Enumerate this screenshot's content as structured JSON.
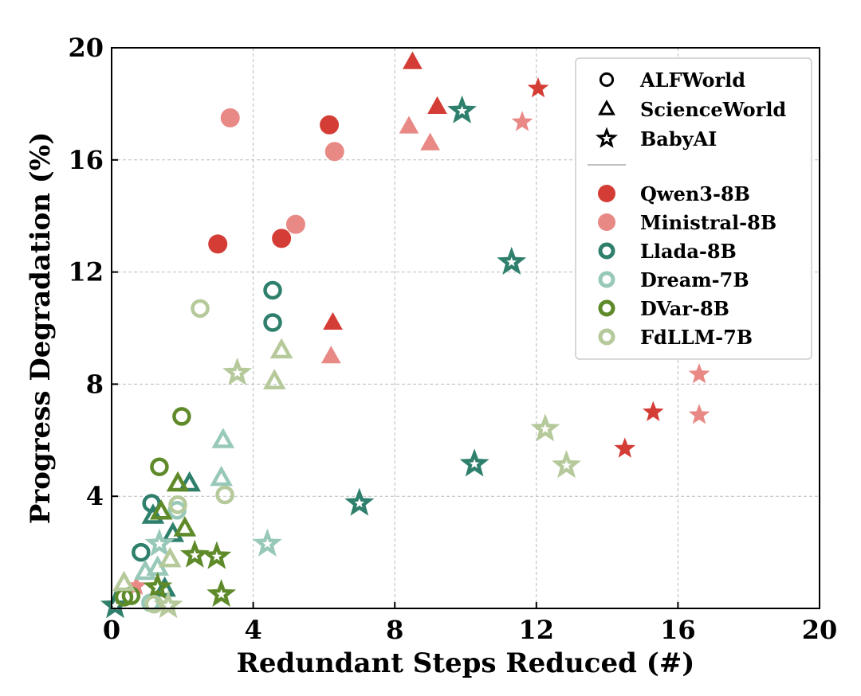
{
  "chart_data": {
    "type": "scatter",
    "xlabel": "Redundant Steps Reduced (#)",
    "ylabel": "Progress Degradation (%)",
    "xlim": [
      0,
      20
    ],
    "ylim": [
      0,
      20
    ],
    "xticks": [
      "0",
      "4",
      "8",
      "12",
      "16",
      "20"
    ],
    "yticks": [
      "4",
      "8",
      "12",
      "16",
      "20"
    ],
    "grid": true,
    "legend_placement": "top-right",
    "marker_legend": [
      {
        "name": "ALFWorld",
        "marker": "circle"
      },
      {
        "name": "ScienceWorld",
        "marker": "triangle"
      },
      {
        "name": "BabyAI",
        "marker": "star"
      }
    ],
    "series": [
      {
        "name": "Qwen3-8B",
        "color": "#d43d36",
        "filled": true,
        "points": [
          {
            "task": "ALFWorld",
            "x": 3.0,
            "y": 13.0
          },
          {
            "task": "ALFWorld",
            "x": 4.8,
            "y": 13.2
          },
          {
            "task": "ALFWorld",
            "x": 6.15,
            "y": 17.25
          },
          {
            "task": "ScienceWorld",
            "x": 8.5,
            "y": 19.5
          },
          {
            "task": "ScienceWorld",
            "x": 9.2,
            "y": 17.9
          },
          {
            "task": "ScienceWorld",
            "x": 6.25,
            "y": 10.2
          },
          {
            "task": "BabyAI",
            "x": 12.05,
            "y": 18.55
          },
          {
            "task": "BabyAI",
            "x": 15.3,
            "y": 7.0
          },
          {
            "task": "BabyAI",
            "x": 14.5,
            "y": 5.7
          }
        ]
      },
      {
        "name": "Ministral-8B",
        "color": "#e88985",
        "filled": true,
        "points": [
          {
            "task": "ALFWorld",
            "x": 3.35,
            "y": 17.5
          },
          {
            "task": "ALFWorld",
            "x": 6.3,
            "y": 16.3
          },
          {
            "task": "ALFWorld",
            "x": 5.2,
            "y": 13.7
          },
          {
            "task": "ScienceWorld",
            "x": 8.4,
            "y": 17.2
          },
          {
            "task": "ScienceWorld",
            "x": 9.0,
            "y": 16.6
          },
          {
            "task": "ScienceWorld",
            "x": 6.2,
            "y": 9.0
          },
          {
            "task": "BabyAI",
            "x": 11.6,
            "y": 17.35
          },
          {
            "task": "BabyAI",
            "x": 16.6,
            "y": 8.35
          },
          {
            "task": "BabyAI",
            "x": 16.6,
            "y": 6.9
          },
          {
            "task": "BabyAI",
            "x": 0.7,
            "y": 0.8
          }
        ]
      },
      {
        "name": "Llada-8B",
        "color": "#2e7f6c",
        "filled": false,
        "points": [
          {
            "task": "ALFWorld",
            "x": 4.55,
            "y": 11.35
          },
          {
            "task": "ALFWorld",
            "x": 4.55,
            "y": 10.2
          },
          {
            "task": "ALFWorld",
            "x": 1.13,
            "y": 3.75
          },
          {
            "task": "ALFWorld",
            "x": 0.83,
            "y": 2.0
          },
          {
            "task": "ScienceWorld",
            "x": 2.2,
            "y": 4.45
          },
          {
            "task": "ScienceWorld",
            "x": 1.17,
            "y": 3.3
          },
          {
            "task": "ScienceWorld",
            "x": 1.73,
            "y": 2.65
          },
          {
            "task": "ScienceWorld",
            "x": 1.5,
            "y": 0.7
          },
          {
            "task": "BabyAI",
            "x": 9.9,
            "y": 17.75
          },
          {
            "task": "BabyAI",
            "x": 11.3,
            "y": 12.35
          },
          {
            "task": "BabyAI",
            "x": 10.25,
            "y": 5.15
          },
          {
            "task": "BabyAI",
            "x": 7.0,
            "y": 3.75
          },
          {
            "task": "BabyAI",
            "x": 0.1,
            "y": 0.1
          }
        ]
      },
      {
        "name": "Dream-7B",
        "color": "#97c8b8",
        "filled": false,
        "points": [
          {
            "task": "ALFWorld",
            "x": 1.85,
            "y": 3.5
          },
          {
            "task": "ALFWorld",
            "x": 1.1,
            "y": 0.2
          },
          {
            "task": "ScienceWorld",
            "x": 3.15,
            "y": 6.0
          },
          {
            "task": "ScienceWorld",
            "x": 3.1,
            "y": 4.65
          },
          {
            "task": "ScienceWorld",
            "x": 1.3,
            "y": 1.45
          },
          {
            "task": "ScienceWorld",
            "x": 0.95,
            "y": 1.3
          },
          {
            "task": "BabyAI",
            "x": 4.4,
            "y": 2.3
          },
          {
            "task": "BabyAI",
            "x": 1.35,
            "y": 2.3
          }
        ]
      },
      {
        "name": "DVar-8B",
        "color": "#5f8a2a",
        "filled": false,
        "points": [
          {
            "task": "ALFWorld",
            "x": 1.98,
            "y": 6.85
          },
          {
            "task": "ALFWorld",
            "x": 1.35,
            "y": 5.05
          },
          {
            "task": "ALFWorld",
            "x": 0.35,
            "y": 0.4
          },
          {
            "task": "ALFWorld",
            "x": 0.55,
            "y": 0.45
          },
          {
            "task": "ScienceWorld",
            "x": 1.87,
            "y": 4.45
          },
          {
            "task": "ScienceWorld",
            "x": 1.4,
            "y": 3.45
          },
          {
            "task": "ScienceWorld",
            "x": 2.07,
            "y": 2.85
          },
          {
            "task": "BabyAI",
            "x": 2.35,
            "y": 1.9
          },
          {
            "task": "BabyAI",
            "x": 2.97,
            "y": 1.85
          },
          {
            "task": "BabyAI",
            "x": 3.1,
            "y": 0.5
          },
          {
            "task": "BabyAI",
            "x": 1.3,
            "y": 0.75
          }
        ]
      },
      {
        "name": "FdLLM-7B",
        "color": "#b5c99a",
        "filled": false,
        "points": [
          {
            "task": "ALFWorld",
            "x": 2.5,
            "y": 10.7
          },
          {
            "task": "ALFWorld",
            "x": 3.2,
            "y": 4.05
          },
          {
            "task": "ALFWorld",
            "x": 1.87,
            "y": 3.7
          },
          {
            "task": "ALFWorld",
            "x": 1.2,
            "y": 0.15
          },
          {
            "task": "ScienceWorld",
            "x": 4.8,
            "y": 9.2
          },
          {
            "task": "ScienceWorld",
            "x": 4.6,
            "y": 8.1
          },
          {
            "task": "ScienceWorld",
            "x": 1.65,
            "y": 1.75
          },
          {
            "task": "ScienceWorld",
            "x": 0.35,
            "y": 0.9
          },
          {
            "task": "BabyAI",
            "x": 3.55,
            "y": 8.4
          },
          {
            "task": "BabyAI",
            "x": 12.25,
            "y": 6.4
          },
          {
            "task": "BabyAI",
            "x": 12.85,
            "y": 5.1
          },
          {
            "task": "BabyAI",
            "x": 1.6,
            "y": 0.1
          }
        ]
      }
    ]
  }
}
